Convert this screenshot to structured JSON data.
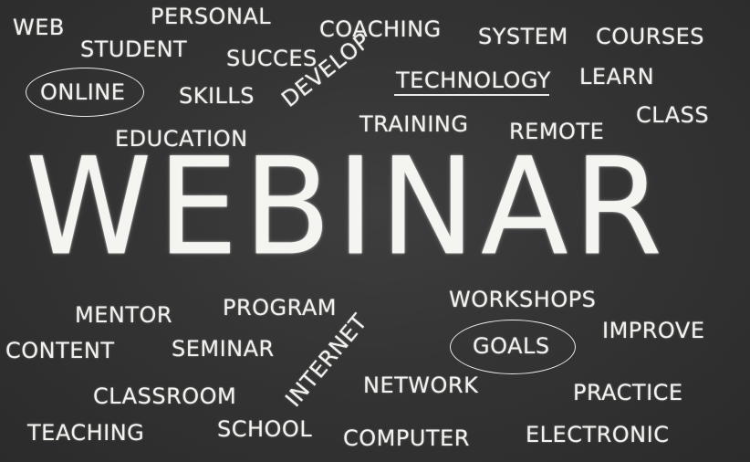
{
  "headline": "WEBINAR",
  "words": {
    "web": "WEB",
    "personal": "PERSONAL",
    "coaching": "COACHING",
    "system": "SYSTEM",
    "courses": "COURSES",
    "student": "STUDENT",
    "succes": "SUCCES",
    "online": "ONLINE",
    "skills": "SKILLS",
    "develop": "DEVELOP",
    "technology": "TECHNOLOGY",
    "learn": "LEARN",
    "class": "CLASS",
    "education": "EDUCATION",
    "training": "TRAINING",
    "remote": "REMOTE",
    "mentor": "MENTOR",
    "program": "PROGRAM",
    "workshops": "WORKSHOPS",
    "improve": "IMPROVE",
    "content": "CONTENT",
    "seminar": "SEMINAR",
    "internet": "INTERNET",
    "goals": "GOALS",
    "classroom": "CLASSROOM",
    "network": "NETWORK",
    "practice": "PRACTICE",
    "teaching": "TEACHING",
    "school": "SCHOOL",
    "computer": "COMPUTER",
    "electronic": "ELECTRONIC"
  }
}
